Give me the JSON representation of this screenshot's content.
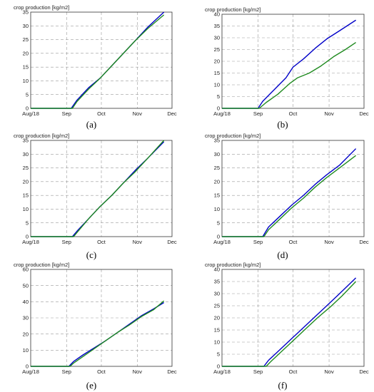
{
  "figure": {
    "panel_labels": [
      "(a)",
      "(b)",
      "(c)",
      "(d)",
      "(e)",
      "(f)"
    ]
  },
  "chart_data": [
    {
      "type": "line",
      "panel": "(a)",
      "ylabel": "crop production [kg/m2]",
      "xlim": [
        "2018-08-01",
        "2018-12-01"
      ],
      "xticks": [
        "2018-08-01",
        "2018-09-01",
        "2018-10-01",
        "2018-11-01",
        "2018-12-01"
      ],
      "xticklabels": [
        "Aug/18",
        "Sep",
        "Oct",
        "Nov",
        "Dec"
      ],
      "ylim": [
        0,
        35
      ],
      "yticks": [
        0,
        5,
        10,
        15,
        20,
        25,
        30,
        35
      ],
      "grid": true,
      "series": [
        {
          "color": "#0000c8",
          "points": [
            [
              "2018-08-01",
              0
            ],
            [
              "2018-09-05",
              0
            ],
            [
              "2018-09-10",
              3
            ],
            [
              "2018-09-20",
              7.5
            ],
            [
              "2018-09-30",
              11
            ],
            [
              "2018-10-10",
              15.5
            ],
            [
              "2018-10-20",
              20
            ],
            [
              "2018-10-30",
              24.5
            ],
            [
              "2018-11-10",
              29.5
            ],
            [
              "2018-11-24",
              35
            ]
          ]
        },
        {
          "color": "#1f8a1f",
          "points": [
            [
              "2018-08-01",
              0
            ],
            [
              "2018-09-06",
              0
            ],
            [
              "2018-09-10",
              2.5
            ],
            [
              "2018-09-20",
              7
            ],
            [
              "2018-09-30",
              11
            ],
            [
              "2018-10-10",
              15.5
            ],
            [
              "2018-10-20",
              20
            ],
            [
              "2018-10-30",
              24.5
            ],
            [
              "2018-11-10",
              29
            ],
            [
              "2018-11-24",
              34
            ]
          ]
        }
      ]
    },
    {
      "type": "line",
      "panel": "(b)",
      "ylabel": "crop production [kg/m2]",
      "xlim": [
        "2018-08-01",
        "2018-12-01"
      ],
      "xticks": [
        "2018-08-01",
        "2018-09-01",
        "2018-10-01",
        "2018-11-01",
        "2018-12-01"
      ],
      "xticklabels": [
        "Aug/18",
        "Sep",
        "Oct",
        "Nov",
        "Dec"
      ],
      "ylim": [
        0,
        40
      ],
      "yticks": [
        0,
        5,
        10,
        15,
        20,
        25,
        30,
        35,
        40
      ],
      "grid": true,
      "series": [
        {
          "color": "#0000c8",
          "points": [
            [
              "2018-08-01",
              0
            ],
            [
              "2018-09-01",
              0
            ],
            [
              "2018-09-05",
              3
            ],
            [
              "2018-09-15",
              8
            ],
            [
              "2018-09-25",
              13
            ],
            [
              "2018-10-01",
              17.5
            ],
            [
              "2018-10-10",
              21
            ],
            [
              "2018-10-20",
              25.5
            ],
            [
              "2018-10-30",
              29.5
            ],
            [
              "2018-11-10",
              33
            ],
            [
              "2018-11-24",
              37.5
            ]
          ]
        },
        {
          "color": "#1f8a1f",
          "points": [
            [
              "2018-08-01",
              0
            ],
            [
              "2018-09-02",
              0
            ],
            [
              "2018-09-08",
              2.5
            ],
            [
              "2018-09-18",
              6
            ],
            [
              "2018-09-28",
              10.5
            ],
            [
              "2018-10-05",
              13
            ],
            [
              "2018-10-15",
              15
            ],
            [
              "2018-10-25",
              18
            ],
            [
              "2018-11-05",
              22
            ],
            [
              "2018-11-15",
              25
            ],
            [
              "2018-11-24",
              28
            ]
          ]
        }
      ]
    },
    {
      "type": "line",
      "panel": "(c)",
      "ylabel": "crop production [kg/m2]",
      "xlim": [
        "2018-08-01",
        "2018-12-01"
      ],
      "xticks": [
        "2018-08-01",
        "2018-09-01",
        "2018-10-01",
        "2018-11-01",
        "2018-12-01"
      ],
      "xticklabels": [
        "Aug/18",
        "Sep",
        "Oct",
        "Nov",
        "Dec"
      ],
      "ylim": [
        0,
        35
      ],
      "yticks": [
        0,
        5,
        10,
        15,
        20,
        25,
        30,
        35
      ],
      "grid": true,
      "series": [
        {
          "color": "#0000c8",
          "points": [
            [
              "2018-08-01",
              0
            ],
            [
              "2018-09-06",
              0
            ],
            [
              "2018-09-10",
              2
            ],
            [
              "2018-09-20",
              6.5
            ],
            [
              "2018-09-30",
              11
            ],
            [
              "2018-10-10",
              15
            ],
            [
              "2018-10-20",
              19.5
            ],
            [
              "2018-10-30",
              24
            ],
            [
              "2018-11-10",
              28.5
            ],
            [
              "2018-11-24",
              34.5
            ]
          ]
        },
        {
          "color": "#1f8a1f",
          "points": [
            [
              "2018-08-01",
              0
            ],
            [
              "2018-09-07",
              0
            ],
            [
              "2018-09-10",
              1.5
            ],
            [
              "2018-09-20",
              6.5
            ],
            [
              "2018-09-30",
              11
            ],
            [
              "2018-10-10",
              15
            ],
            [
              "2018-10-20",
              19.5
            ],
            [
              "2018-10-30",
              23.5
            ],
            [
              "2018-11-10",
              28.5
            ],
            [
              "2018-11-24",
              35
            ]
          ]
        }
      ]
    },
    {
      "type": "line",
      "panel": "(d)",
      "ylabel": "crop production [kg/m2]",
      "xlim": [
        "2018-08-01",
        "2018-12-01"
      ],
      "xticks": [
        "2018-08-01",
        "2018-09-01",
        "2018-10-01",
        "2018-11-01",
        "2018-12-01"
      ],
      "xticklabels": [
        "Aug/18",
        "Sep",
        "Oct",
        "Nov",
        "Dec"
      ],
      "ylim": [
        0,
        35
      ],
      "yticks": [
        0,
        5,
        10,
        15,
        20,
        25,
        30,
        35
      ],
      "grid": true,
      "series": [
        {
          "color": "#0000c8",
          "points": [
            [
              "2018-08-01",
              0
            ],
            [
              "2018-09-05",
              0
            ],
            [
              "2018-09-10",
              3.5
            ],
            [
              "2018-09-20",
              7.5
            ],
            [
              "2018-09-30",
              11.5
            ],
            [
              "2018-10-10",
              15
            ],
            [
              "2018-10-20",
              19
            ],
            [
              "2018-10-30",
              22.5
            ],
            [
              "2018-11-10",
              26
            ],
            [
              "2018-11-24",
              32
            ]
          ]
        },
        {
          "color": "#1f8a1f",
          "points": [
            [
              "2018-08-01",
              0
            ],
            [
              "2018-09-06",
              0
            ],
            [
              "2018-09-10",
              2.5
            ],
            [
              "2018-09-20",
              6.5
            ],
            [
              "2018-09-30",
              10.5
            ],
            [
              "2018-10-10",
              14
            ],
            [
              "2018-10-20",
              18
            ],
            [
              "2018-10-30",
              21.5
            ],
            [
              "2018-11-10",
              25
            ],
            [
              "2018-11-24",
              29.5
            ]
          ]
        }
      ]
    },
    {
      "type": "line",
      "panel": "(e)",
      "ylabel": "crop production [kg/m2]",
      "xlim": [
        "2018-08-01",
        "2018-12-01"
      ],
      "xticks": [
        "2018-08-01",
        "2018-09-01",
        "2018-10-01",
        "2018-11-01",
        "2018-12-01"
      ],
      "xticklabels": [
        "Aug/18",
        "Sep",
        "Oct",
        "Nov",
        "Dec"
      ],
      "ylim": [
        0,
        60
      ],
      "yticks": [
        0,
        10,
        20,
        30,
        40,
        50,
        60
      ],
      "grid": true,
      "series": [
        {
          "color": "#0000c8",
          "points": [
            [
              "2018-08-01",
              0
            ],
            [
              "2018-09-03",
              0
            ],
            [
              "2018-09-07",
              3
            ],
            [
              "2018-09-15",
              7
            ],
            [
              "2018-09-25",
              11.5
            ],
            [
              "2018-10-05",
              16
            ],
            [
              "2018-10-15",
              21
            ],
            [
              "2018-10-25",
              26
            ],
            [
              "2018-11-05",
              31.5
            ],
            [
              "2018-11-15",
              35.5
            ],
            [
              "2018-11-24",
              39.5
            ]
          ]
        },
        {
          "color": "#1f8a1f",
          "points": [
            [
              "2018-08-01",
              0
            ],
            [
              "2018-09-04",
              0
            ],
            [
              "2018-09-07",
              2
            ],
            [
              "2018-09-15",
              6
            ],
            [
              "2018-09-25",
              11
            ],
            [
              "2018-10-05",
              16
            ],
            [
              "2018-10-15",
              21
            ],
            [
              "2018-10-25",
              25.5
            ],
            [
              "2018-11-05",
              31
            ],
            [
              "2018-11-15",
              35
            ],
            [
              "2018-11-24",
              40.5
            ]
          ]
        }
      ]
    },
    {
      "type": "line",
      "panel": "(f)",
      "ylabel": "crop production [kg/m2]",
      "xlim": [
        "2018-08-01",
        "2018-12-01"
      ],
      "xticks": [
        "2018-08-01",
        "2018-09-01",
        "2018-10-01",
        "2018-11-01",
        "2018-12-01"
      ],
      "xticklabels": [
        "Aug/18",
        "Sep",
        "Oct",
        "Nov",
        "Dec"
      ],
      "ylim": [
        0,
        40
      ],
      "yticks": [
        0,
        5,
        10,
        15,
        20,
        25,
        30,
        35,
        40
      ],
      "grid": true,
      "series": [
        {
          "color": "#0000c8",
          "points": [
            [
              "2018-08-01",
              0
            ],
            [
              "2018-09-06",
              0
            ],
            [
              "2018-09-10",
              2.5
            ],
            [
              "2018-09-20",
              7
            ],
            [
              "2018-09-30",
              11.5
            ],
            [
              "2018-10-10",
              16
            ],
            [
              "2018-10-20",
              20.5
            ],
            [
              "2018-10-30",
              25
            ],
            [
              "2018-11-10",
              30
            ],
            [
              "2018-11-24",
              36.5
            ]
          ]
        },
        {
          "color": "#1f8a1f",
          "points": [
            [
              "2018-08-01",
              0
            ],
            [
              "2018-09-08",
              0
            ],
            [
              "2018-09-12",
              2
            ],
            [
              "2018-09-22",
              6.5
            ],
            [
              "2018-10-02",
              11
            ],
            [
              "2018-10-12",
              15.5
            ],
            [
              "2018-10-22",
              20
            ],
            [
              "2018-11-02",
              24.5
            ],
            [
              "2018-11-12",
              29
            ],
            [
              "2018-11-24",
              35
            ]
          ]
        }
      ]
    }
  ]
}
